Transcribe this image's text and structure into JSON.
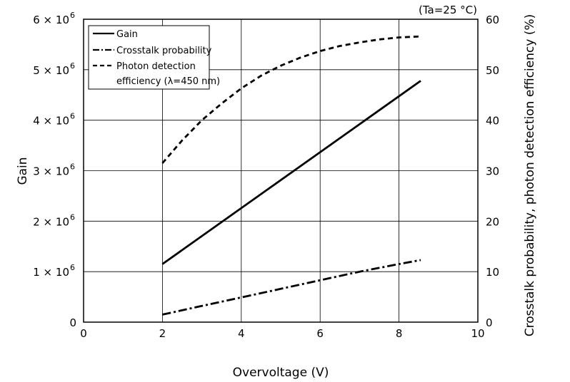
{
  "chart_data": {
    "type": "line",
    "annotation": "(Ta=25 °C)",
    "xlabel": "Overvoltage (V)",
    "ylabel": "Gain",
    "y2label": "Crosstalk probability, photon detection efficiency (%)",
    "xlim": [
      0,
      10
    ],
    "ylim": [
      0,
      6000000
    ],
    "y2lim": [
      0,
      60
    ],
    "x_ticks": [
      "0",
      "2",
      "4",
      "6",
      "8",
      "10"
    ],
    "y_ticks": [
      "0",
      "1 × 10",
      "2 × 10",
      "3 × 10",
      "4 × 10",
      "5 × 10",
      "6 × 10"
    ],
    "y_tick_exponent": "6",
    "y2_ticks": [
      "0",
      "10",
      "20",
      "30",
      "40",
      "50",
      "60"
    ],
    "grid": true,
    "legend_position": "top-left",
    "series": [
      {
        "name": "Gain",
        "axis": "left",
        "style": "solid",
        "x": [
          2,
          8.55
        ],
        "y": [
          1150000,
          4780000
        ]
      },
      {
        "name": "Crosstalk probability",
        "axis": "right",
        "style": "dash-dot",
        "x": [
          2,
          3,
          4,
          5,
          6,
          7,
          8,
          8.55
        ],
        "y": [
          1.5,
          3.2,
          4.9,
          6.6,
          8.3,
          10.0,
          11.5,
          12.3
        ]
      },
      {
        "name": "Photon detection",
        "name_line2": "efficiency (λ=450 nm)",
        "axis": "right",
        "style": "dashed",
        "x": [
          2,
          2.5,
          3,
          3.5,
          4,
          4.5,
          5,
          5.5,
          6,
          6.5,
          7,
          7.5,
          8,
          8.55
        ],
        "y": [
          31.5,
          36,
          40,
          43.3,
          46.3,
          48.8,
          50.8,
          52.4,
          53.7,
          54.7,
          55.4,
          56,
          56.4,
          56.6
        ]
      }
    ]
  }
}
